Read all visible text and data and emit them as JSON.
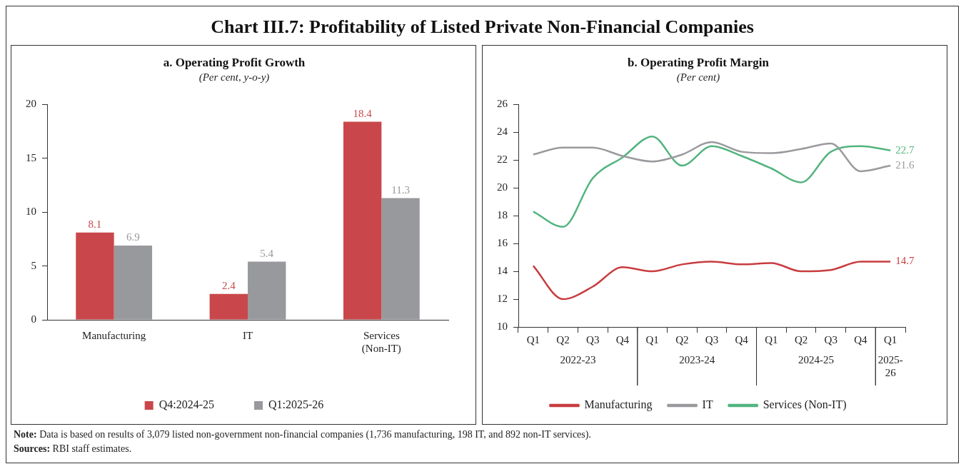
{
  "chart_data": [
    {
      "type": "other",
      "title": "Chart III.7: Profitability of Listed Private Non-Financial Companies",
      "annotations": [
        "Note: Data is based on results of 3,079 listed non-government non-financial companies (1,736 manufacturing, 198 IT, and 892 non-IT services).",
        "Sources: RBI staff estimates."
      ]
    },
    {
      "type": "bar",
      "title": "a. Operating Profit Growth",
      "subtitle": "(Per cent, y-o-y)",
      "categories": [
        "Manufacturing",
        "IT",
        "Services (Non-IT)"
      ],
      "series": [
        {
          "name": "Q4:2024-25",
          "color": "#c9474a",
          "values": [
            8.1,
            2.4,
            18.4
          ]
        },
        {
          "name": "Q1:2025-26",
          "color": "#98999c",
          "values": [
            6.9,
            5.4,
            11.3
          ]
        }
      ],
      "ylim": [
        0,
        20
      ],
      "yticks": [
        0,
        5,
        10,
        15,
        20
      ],
      "grid": false,
      "legend": "bottom",
      "data_labels": true
    },
    {
      "type": "line",
      "title": "b. Operating Profit Margin",
      "subtitle": "(Per cent)",
      "categories": [
        "Q1",
        "Q2",
        "Q3",
        "Q4",
        "Q1",
        "Q2",
        "Q3",
        "Q4",
        "Q1",
        "Q2",
        "Q3",
        "Q4",
        "Q1"
      ],
      "series": [
        {
          "name": "Manufacturing",
          "color": "#c83c3f",
          "values": [
            14.4,
            12.0,
            12.9,
            14.3,
            14.0,
            14.5,
            14.7,
            14.5,
            14.6,
            14.0,
            14.1,
            14.7,
            14.7
          ],
          "value_labels": [
            null,
            null,
            null,
            null,
            null,
            null,
            null,
            null,
            null,
            null,
            null,
            null,
            "14.7"
          ]
        },
        {
          "name": "IT",
          "color": "#9a9a9e",
          "values": [
            22.4,
            22.9,
            22.9,
            22.3,
            21.9,
            22.4,
            23.3,
            22.6,
            22.5,
            22.8,
            23.2,
            21.2,
            21.6
          ],
          "value_labels": [
            null,
            null,
            null,
            null,
            null,
            null,
            null,
            null,
            null,
            null,
            null,
            null,
            "21.6"
          ]
        },
        {
          "name": "Services (Non-IT)",
          "color": "#52b47f",
          "values": [
            18.3,
            17.2,
            20.7,
            22.2,
            23.7,
            21.6,
            23.0,
            22.3,
            21.4,
            20.4,
            22.6,
            23.0,
            22.7
          ],
          "value_labels": [
            null,
            null,
            null,
            null,
            null,
            null,
            null,
            null,
            null,
            null,
            null,
            null,
            "22.7"
          ]
        }
      ],
      "ylim": [
        10,
        26
      ],
      "yticks": [
        10,
        12,
        14,
        16,
        18,
        20,
        22,
        24,
        26
      ],
      "grid": false,
      "legend": "bottom",
      "marker": "none",
      "line_style": "solid",
      "annotations": [
        "2022-23",
        "2023-24",
        "2024-25",
        "2025-26"
      ]
    }
  ]
}
